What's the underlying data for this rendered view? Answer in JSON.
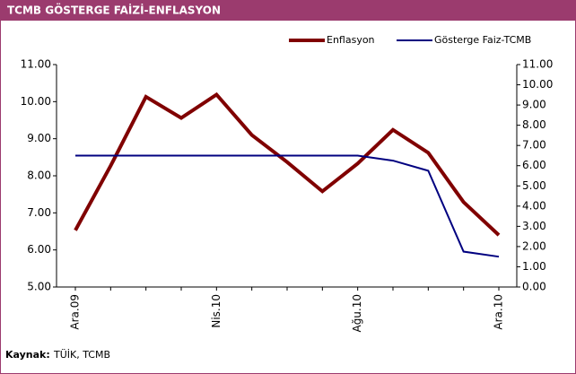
{
  "chart_data": {
    "type": "line",
    "title": "TCMB GÖSTERGE FAİZİ-ENFLASYON",
    "categories": [
      "Ara.09",
      null,
      null,
      null,
      "Nis.10",
      null,
      null,
      null,
      "Ağu.10",
      null,
      null,
      null,
      "Ara.10"
    ],
    "series": [
      {
        "name": "Enflasyon",
        "color": "#800000",
        "values": [
          6.53,
          8.27,
          10.13,
          9.56,
          10.19,
          9.1,
          8.37,
          7.58,
          8.33,
          9.24,
          8.62,
          7.29,
          6.4
        ]
      },
      {
        "name": "Gösterge Faiz-TCMB",
        "color": "#000080",
        "axis": "y2",
        "values": [
          6.5,
          6.5,
          6.5,
          6.5,
          6.5,
          6.5,
          6.5,
          6.5,
          6.5,
          6.25,
          5.75,
          1.75,
          1.5
        ]
      }
    ],
    "ylim": [
      5,
      11
    ],
    "yticks": [
      {
        "value": 5,
        "label": "5.00"
      },
      {
        "value": 6,
        "label": "6.00"
      },
      {
        "value": 7,
        "label": "7.00"
      },
      {
        "value": 8,
        "label": "8.00"
      },
      {
        "value": 9,
        "label": "9.00"
      },
      {
        "value": 10,
        "label": "10.00"
      },
      {
        "value": 11,
        "label": "11.00"
      }
    ],
    "y2lim": [
      0,
      11
    ],
    "y2ticks": [
      {
        "value": 0,
        "label": "0.00"
      },
      {
        "value": 1,
        "label": "1.00"
      },
      {
        "value": 2,
        "label": "2.00"
      },
      {
        "value": 3,
        "label": "3.00"
      },
      {
        "value": 4,
        "label": "4.00"
      },
      {
        "value": 5,
        "label": "5.00"
      },
      {
        "value": 6,
        "label": "6.00"
      },
      {
        "value": 7,
        "label": "7.00"
      },
      {
        "value": 8,
        "label": "8.00"
      },
      {
        "value": 9,
        "label": "9.00"
      },
      {
        "value": 10,
        "label": "10.00"
      },
      {
        "value": 11,
        "label": "11.00"
      }
    ],
    "legend": "top-right",
    "source_label": "Kaynak:",
    "source_text": "TÜİK, TCMB"
  }
}
